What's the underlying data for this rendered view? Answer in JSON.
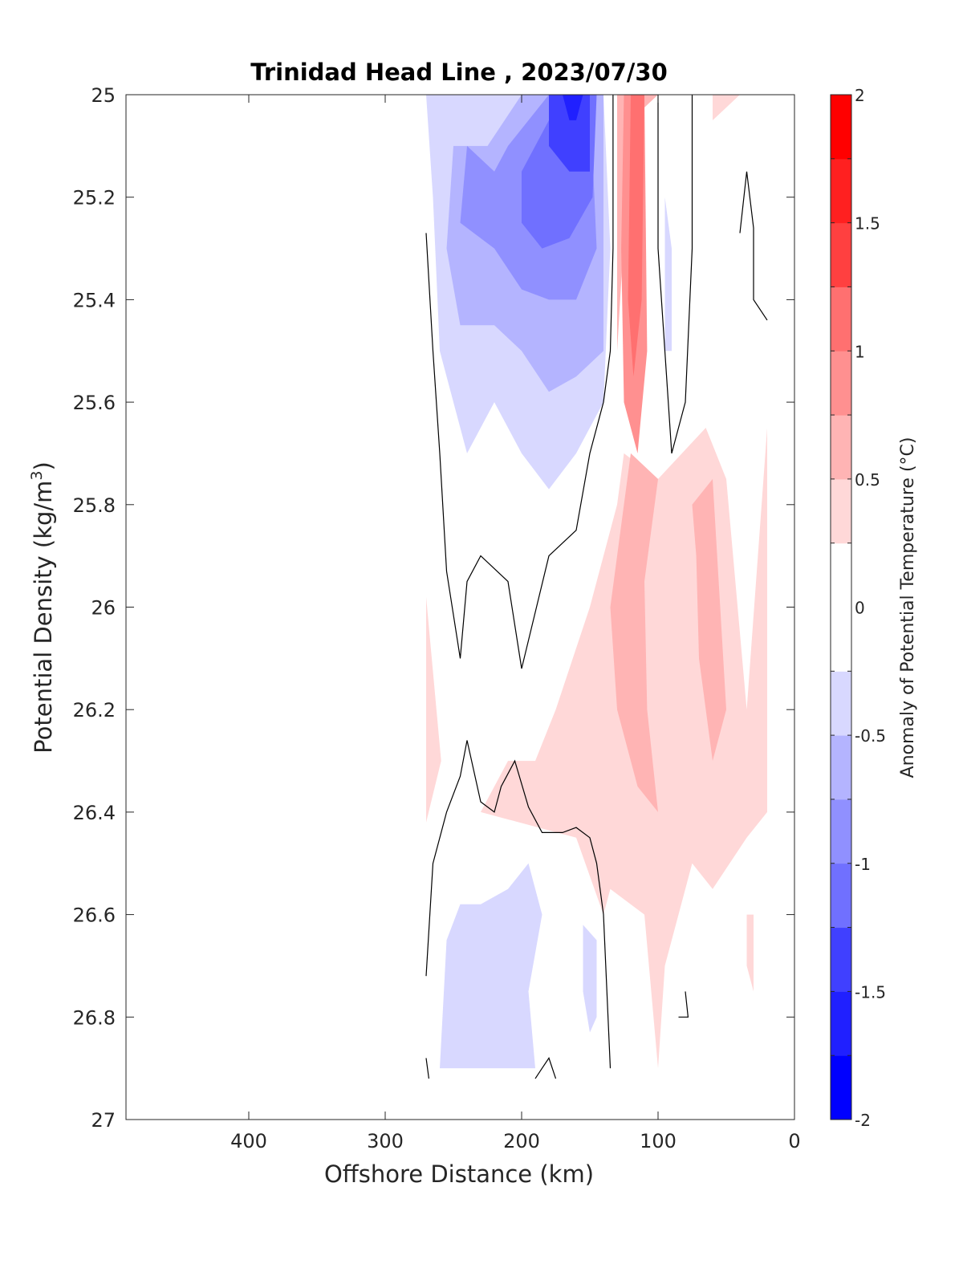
{
  "chart_data": {
    "type": "heatmap",
    "title": "Trinidad Head Line , 2023/07/30",
    "xlabel": "Offshore Distance (km)",
    "ylabel": "Potential Density (kg/m",
    "ylabel_sup": "3",
    "ylabel_suffix": ")",
    "xlim": [
      490,
      0
    ],
    "ylim": [
      25,
      27
    ],
    "x_ticks": [
      400,
      300,
      200,
      100,
      0
    ],
    "x_tick_labels": [
      "400",
      "300",
      "200",
      "100",
      "0"
    ],
    "y_ticks": [
      25,
      25.2,
      25.4,
      25.6,
      25.8,
      26,
      26.2,
      26.4,
      26.6,
      26.8,
      27
    ],
    "y_tick_labels": [
      "25",
      "25.2",
      "25.4",
      "25.6",
      "25.8",
      "26",
      "26.2",
      "26.4",
      "26.6",
      "26.8",
      "27"
    ],
    "colorbar": {
      "label": "Anomaly of Potential Temperature (°C)",
      "range": [
        -2,
        2
      ],
      "ticks": [
        -2,
        -1.5,
        -1,
        -0.5,
        0,
        0.5,
        1,
        1.5,
        2
      ],
      "tick_labels": [
        "-2",
        "-1.5",
        "-1",
        "-0.5",
        "0",
        "0.5",
        "1",
        "1.5",
        "2"
      ],
      "bands": [
        {
          "range": [
            -2.0,
            -1.75
          ],
          "color": "#0000ff"
        },
        {
          "range": [
            -1.75,
            -1.5
          ],
          "color": "#2020ff"
        },
        {
          "range": [
            -1.5,
            -1.25
          ],
          "color": "#4040ff"
        },
        {
          "range": [
            -1.25,
            -1.0
          ],
          "color": "#7070ff"
        },
        {
          "range": [
            -1.0,
            -0.75
          ],
          "color": "#9090ff"
        },
        {
          "range": [
            -0.75,
            -0.5
          ],
          "color": "#b4b4ff"
        },
        {
          "range": [
            -0.5,
            -0.25
          ],
          "color": "#d8d8ff"
        },
        {
          "range": [
            -0.25,
            0.25
          ],
          "color": "#ffffff"
        },
        {
          "range": [
            0.25,
            0.5
          ],
          "color": "#ffd8d8"
        },
        {
          "range": [
            0.5,
            0.75
          ],
          "color": "#ffb4b4"
        },
        {
          "range": [
            0.75,
            1.0
          ],
          "color": "#ff9090"
        },
        {
          "range": [
            1.0,
            1.25
          ],
          "color": "#ff7070"
        },
        {
          "range": [
            1.25,
            1.5
          ],
          "color": "#ff4040"
        },
        {
          "range": [
            1.5,
            1.75
          ],
          "color": "#ff2020"
        },
        {
          "range": [
            1.75,
            2.0
          ],
          "color": "#ff0000"
        }
      ]
    },
    "data_extent": {
      "x": [
        270,
        20
      ],
      "y": [
        25,
        26.9
      ]
    },
    "filled_regions": [
      {
        "level": 0.375,
        "points": [
          [
            270,
            25.98
          ],
          [
            270,
            26.42
          ],
          [
            259,
            26.3
          ]
        ]
      },
      {
        "level": 0.375,
        "points": [
          [
            80,
            26.55
          ],
          [
            75,
            26.5
          ],
          [
            60,
            26.55
          ],
          [
            35,
            26.45
          ],
          [
            20,
            26.4
          ],
          [
            20,
            25.65
          ],
          [
            35,
            26.2
          ],
          [
            50,
            25.75
          ],
          [
            65,
            25.65
          ],
          [
            100,
            25.75
          ],
          [
            125,
            25.7
          ],
          [
            130,
            25.8
          ],
          [
            150,
            26
          ],
          [
            175,
            26.2
          ],
          [
            190,
            26.3
          ],
          [
            210,
            26.3
          ],
          [
            230,
            26.4
          ],
          [
            160,
            26.45
          ],
          [
            140,
            26.6
          ],
          [
            135,
            26.55
          ],
          [
            110,
            26.6
          ],
          [
            100,
            26.9
          ],
          [
            95,
            26.7
          ]
        ]
      },
      {
        "level": 0.375,
        "points": [
          [
            35,
            26.6
          ],
          [
            30,
            26.6
          ],
          [
            30,
            26.75
          ],
          [
            35,
            26.7
          ]
        ]
      },
      {
        "level": 0.375,
        "points": [
          [
            60,
            25.05
          ],
          [
            40,
            25
          ],
          [
            60,
            25
          ]
        ]
      },
      {
        "level": 0.625,
        "points": [
          [
            120,
            25.7
          ],
          [
            100,
            25.75
          ],
          [
            110,
            25.95
          ],
          [
            108,
            26.2
          ],
          [
            100,
            26.4
          ],
          [
            115,
            26.35
          ],
          [
            130,
            26.2
          ],
          [
            135,
            26
          ]
        ]
      },
      {
        "level": 0.625,
        "points": [
          [
            75,
            25.8
          ],
          [
            60,
            25.75
          ],
          [
            50,
            26.2
          ],
          [
            60,
            26.3
          ],
          [
            70,
            26.1
          ],
          [
            72,
            25.9
          ]
        ]
      },
      {
        "level": 0.625,
        "points": [
          [
            120,
            25.05
          ],
          [
            100,
            25
          ],
          [
            130,
            25
          ],
          [
            130,
            25.5
          ]
        ]
      },
      {
        "level": 0.875,
        "points": [
          [
            125,
            25.0
          ],
          [
            110,
            25.0
          ],
          [
            108,
            25.5
          ],
          [
            115,
            25.7
          ],
          [
            125,
            25.6
          ],
          [
            127,
            25.3
          ]
        ]
      },
      {
        "level": 1.125,
        "points": [
          [
            120,
            25.0
          ],
          [
            110,
            25.0
          ],
          [
            112,
            25.4
          ],
          [
            118,
            25.55
          ],
          [
            122,
            25.4
          ]
        ]
      },
      {
        "level": -0.375,
        "points": [
          [
            270,
            25.0
          ],
          [
            140,
            25.0
          ],
          [
            135,
            25.3
          ],
          [
            140,
            25.6
          ],
          [
            160,
            25.7
          ],
          [
            180,
            25.77
          ],
          [
            200,
            25.7
          ],
          [
            210,
            25.65
          ],
          [
            220,
            25.6
          ],
          [
            240,
            25.7
          ],
          [
            250,
            25.6
          ],
          [
            260,
            25.5
          ],
          [
            265,
            25.2
          ]
        ]
      },
      {
        "level": -0.625,
        "points": [
          [
            250,
            25.1
          ],
          [
            235,
            25.1
          ],
          [
            225,
            25.1
          ],
          [
            200,
            25.0
          ],
          [
            140,
            25.0
          ],
          [
            140,
            25.5
          ],
          [
            160,
            25.55
          ],
          [
            180,
            25.58
          ],
          [
            200,
            25.5
          ],
          [
            220,
            25.45
          ],
          [
            245,
            25.45
          ],
          [
            255,
            25.3
          ]
        ]
      },
      {
        "level": -0.875,
        "points": [
          [
            240,
            25.1
          ],
          [
            220,
            25.15
          ],
          [
            210,
            25.1
          ],
          [
            180,
            25.0
          ],
          [
            150,
            25.0
          ],
          [
            145,
            25.3
          ],
          [
            160,
            25.4
          ],
          [
            180,
            25.4
          ],
          [
            200,
            25.38
          ],
          [
            220,
            25.3
          ],
          [
            245,
            25.25
          ]
        ]
      },
      {
        "level": -1.125,
        "points": [
          [
            200,
            25.15
          ],
          [
            170,
            25.0
          ],
          [
            145,
            25.0
          ],
          [
            148,
            25.2
          ],
          [
            165,
            25.28
          ],
          [
            185,
            25.3
          ],
          [
            200,
            25.25
          ]
        ]
      },
      {
        "level": -1.375,
        "points": [
          [
            180,
            25.0
          ],
          [
            150,
            25.0
          ],
          [
            150,
            25.15
          ],
          [
            165,
            25.15
          ],
          [
            180,
            25.1
          ]
        ]
      },
      {
        "level": -1.625,
        "points": [
          [
            170,
            25.0
          ],
          [
            155,
            25.0
          ],
          [
            160,
            25.05
          ],
          [
            165,
            25.05
          ]
        ]
      },
      {
        "level": -0.375,
        "points": [
          [
            260,
            26.9
          ],
          [
            190,
            26.9
          ],
          [
            195,
            26.75
          ],
          [
            185,
            26.6
          ],
          [
            195,
            26.5
          ],
          [
            210,
            26.55
          ],
          [
            230,
            26.58
          ],
          [
            245,
            26.58
          ],
          [
            255,
            26.65
          ],
          [
            258,
            26.8
          ]
        ]
      },
      {
        "level": -0.375,
        "points": [
          [
            155,
            26.62
          ],
          [
            145,
            26.65
          ],
          [
            145,
            26.8
          ],
          [
            150,
            26.83
          ],
          [
            155,
            26.75
          ]
        ]
      },
      {
        "level": -0.375,
        "points": [
          [
            95,
            25.2
          ],
          [
            90,
            25.3
          ],
          [
            90,
            25.5
          ],
          [
            95,
            25.5
          ]
        ]
      }
    ],
    "contour_lines": [
      {
        "level": 0,
        "points": [
          [
            270,
            25.27
          ],
          [
            265,
            25.5
          ],
          [
            260,
            25.7
          ],
          [
            255,
            25.93
          ],
          [
            245,
            26.1
          ],
          [
            240,
            25.95
          ],
          [
            230,
            25.9
          ],
          [
            210,
            25.95
          ],
          [
            200,
            26.12
          ],
          [
            180,
            25.9
          ],
          [
            160,
            25.85
          ],
          [
            150,
            25.7
          ],
          [
            140,
            25.6
          ],
          [
            135,
            25.5
          ],
          [
            133,
            25.3
          ],
          [
            133,
            25.0
          ]
        ]
      },
      {
        "level": 0,
        "points": [
          [
            270,
            26.72
          ],
          [
            265,
            26.5
          ],
          [
            255,
            26.4
          ],
          [
            245,
            26.33
          ],
          [
            240,
            26.26
          ],
          [
            230,
            26.38
          ],
          [
            220,
            26.4
          ],
          [
            215,
            26.35
          ],
          [
            205,
            26.3
          ],
          [
            195,
            26.39
          ],
          [
            185,
            26.44
          ],
          [
            170,
            26.44
          ],
          [
            160,
            26.43
          ],
          [
            150,
            26.45
          ],
          [
            145,
            26.5
          ],
          [
            140,
            26.6
          ],
          [
            135,
            26.9
          ]
        ]
      },
      {
        "level": 0,
        "points": [
          [
            270,
            26.88
          ],
          [
            268,
            26.92
          ]
        ]
      },
      {
        "level": 0,
        "points": [
          [
            190,
            26.92
          ],
          [
            185,
            26.9
          ],
          [
            180,
            26.88
          ],
          [
            175,
            26.92
          ]
        ]
      },
      {
        "level": 0,
        "points": [
          [
            100,
            25.0
          ],
          [
            100,
            25.3
          ],
          [
            95,
            25.5
          ],
          [
            90,
            25.7
          ],
          [
            80,
            25.6
          ],
          [
            75,
            25.3
          ],
          [
            75,
            25.0
          ]
        ]
      },
      {
        "level": 0,
        "points": [
          [
            40,
            25.27
          ],
          [
            35,
            25.15
          ],
          [
            30,
            25.26
          ],
          [
            30,
            25.4
          ],
          [
            20,
            25.44
          ]
        ]
      },
      {
        "level": 0,
        "points": [
          [
            80,
            26.75
          ],
          [
            78,
            26.8
          ],
          [
            85,
            26.8
          ]
        ]
      }
    ]
  }
}
